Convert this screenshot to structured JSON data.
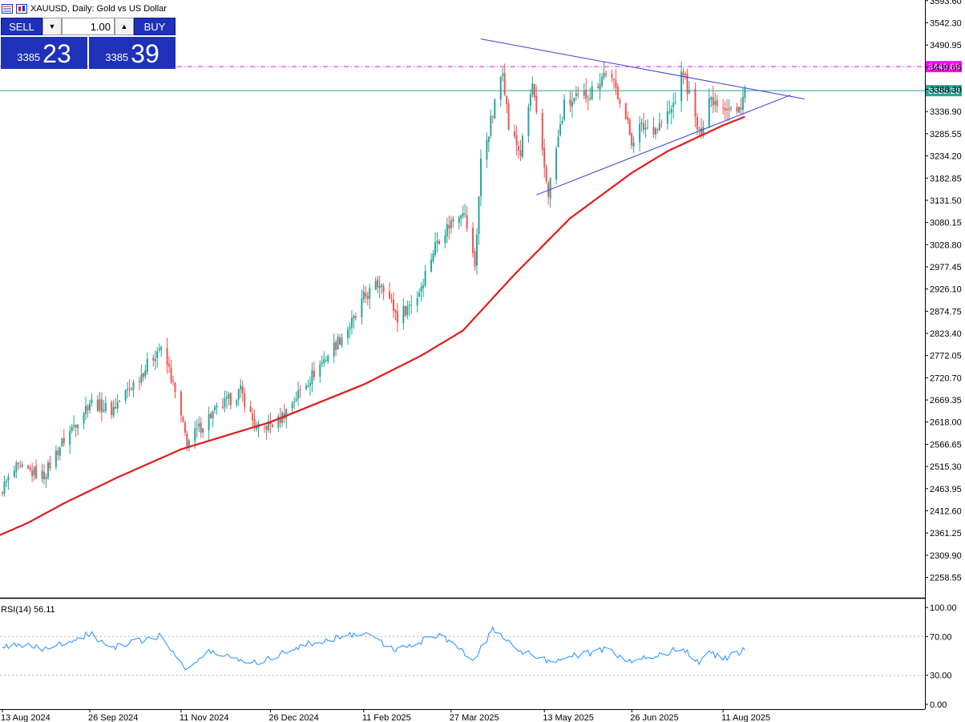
{
  "header": {
    "title": "XAUUSD, Daily:  Gold vs US Dollar"
  },
  "trade_panel": {
    "sell_label": "SELL",
    "buy_label": "BUY",
    "lot_value": "1.00",
    "sell_price_main": "3385",
    "sell_price_big": "23",
    "buy_price_main": "3385",
    "buy_price_big": "39"
  },
  "colors": {
    "bull_candle": "#26a69a",
    "bear_candle": "#ef5350",
    "moving_average": "#e31b1b",
    "trendline": "#3d3ddb",
    "resistance_line": "#ff00ff",
    "bid_line": "#26a69a",
    "rsi_line": "#1e90ff",
    "panel_blue": "#1f31b8"
  },
  "chart_data": [
    {
      "type": "candlestick",
      "symbol": "XAUUSD",
      "timeframe": "Daily",
      "ylim": [
        2207,
        3592
      ],
      "y_ticks": [
        "3593.60",
        "3542.30",
        "3490.95",
        "3439.65",
        "3388.30",
        "3336.90",
        "3285.55",
        "3234.20",
        "3182.85",
        "3131.50",
        "3080.15",
        "3028.80",
        "2977.45",
        "2926.10",
        "2874.75",
        "2823.40",
        "2772.05",
        "2720.70",
        "2669.35",
        "2618.00",
        "2566.65",
        "2515.30",
        "2463.95",
        "2412.60",
        "2361.25",
        "2309.90",
        "2258.55"
      ],
      "x_ticks": [
        "13 Aug 2024",
        "26 Sep 2024",
        "11 Nov 2024",
        "26 Dec 2024",
        "11 Feb 2025",
        "27 Mar 2025",
        "13 May 2025",
        "26 Jun 2025",
        "11 Aug 2025"
      ],
      "price_anchors": [
        [
          "13 Aug 2024",
          2465
        ],
        [
          "20 Aug 2024",
          2510
        ],
        [
          "03 Sep 2024",
          2495
        ],
        [
          "12 Sep 2024",
          2570
        ],
        [
          "20 Sep 2024",
          2625
        ],
        [
          "26 Sep 2024",
          2665
        ],
        [
          "07 Oct 2024",
          2645
        ],
        [
          "22 Oct 2024",
          2730
        ],
        [
          "31 Oct 2024",
          2790
        ],
        [
          "05 Nov 2024",
          2740
        ],
        [
          "14 Nov 2024",
          2570
        ],
        [
          "25 Nov 2024",
          2630
        ],
        [
          "11 Dec 2024",
          2690
        ],
        [
          "19 Dec 2024",
          2600
        ],
        [
          "30 Dec 2024",
          2620
        ],
        [
          "10 Jan 2025",
          2690
        ],
        [
          "24 Jan 2025",
          2775
        ],
        [
          "07 Feb 2025",
          2860
        ],
        [
          "11 Feb 2025",
          2905
        ],
        [
          "20 Feb 2025",
          2945
        ],
        [
          "28 Feb 2025",
          2860
        ],
        [
          "10 Mar 2025",
          2910
        ],
        [
          "20 Mar 2025",
          3040
        ],
        [
          "02 Apr 2025",
          3115
        ],
        [
          "08 Apr 2025",
          2980
        ],
        [
          "11 Apr 2025",
          3220
        ],
        [
          "17 Apr 2025",
          3330
        ],
        [
          "22 Apr 2025",
          3440
        ],
        [
          "25 Apr 2025",
          3300
        ],
        [
          "01 May 2025",
          3240
        ],
        [
          "07 May 2025",
          3400
        ],
        [
          "09 May 2025",
          3320
        ],
        [
          "15 May 2025",
          3150
        ],
        [
          "23 May 2025",
          3350
        ],
        [
          "05 Jun 2025",
          3380
        ],
        [
          "13 Jun 2025",
          3430
        ],
        [
          "20 Jun 2025",
          3370
        ],
        [
          "26 Jun 2025",
          3270
        ],
        [
          "30 Jun 2025",
          3300
        ],
        [
          "09 Jul 2025",
          3300
        ],
        [
          "16 Jul 2025",
          3340
        ],
        [
          "22 Jul 2025",
          3430
        ],
        [
          "30 Jul 2025",
          3280
        ],
        [
          "04 Aug 2025",
          3370
        ],
        [
          "11 Aug 2025",
          3355
        ],
        [
          "18 Aug 2025",
          3330
        ],
        [
          "22 Aug 2025",
          3385
        ]
      ],
      "moving_average_anchors": [
        [
          "06 Aug 2024",
          2345
        ],
        [
          "26 Aug 2024",
          2385
        ],
        [
          "13 Sep 2024",
          2430
        ],
        [
          "10 Oct 2024",
          2490
        ],
        [
          "11 Nov 2024",
          2555
        ],
        [
          "26 Dec 2024",
          2618
        ],
        [
          "11 Feb 2025",
          2705
        ],
        [
          "12 Mar 2025",
          2772
        ],
        [
          "02 Apr 2025",
          2830
        ],
        [
          "28 Apr 2025",
          2960
        ],
        [
          "26 May 2025",
          3090
        ],
        [
          "26 Jun 2025",
          3195
        ],
        [
          "14 Jul 2025",
          3245
        ],
        [
          "28 Jul 2025",
          3275
        ],
        [
          "11 Aug 2025",
          3305
        ],
        [
          "22 Aug 2025",
          3325
        ]
      ],
      "trendlines": [
        {
          "name": "upper",
          "points": [
            [
              "11 Apr 2025",
              3505
            ],
            [
              "21 Sep 2025",
              3366
            ]
          ]
        },
        {
          "name": "lower",
          "points": [
            [
              "09 May 2025",
              3144
            ],
            [
              "14 Sep 2025",
              3375
            ]
          ]
        }
      ],
      "resistance_level": "3440.89",
      "current_price": "3385.26",
      "chart_high": "3500"
    },
    {
      "type": "line",
      "name": "RSI(14) 56.11",
      "ylim": [
        0,
        100
      ],
      "y_ticks": [
        "100.00",
        "70.00",
        "30.00",
        "0.00"
      ],
      "levels": [
        30,
        70
      ],
      "anchors": [
        [
          "13 Aug 2024",
          57
        ],
        [
          "20 Aug 2024",
          63
        ],
        [
          "03 Sep 2024",
          56
        ],
        [
          "26 Sep 2024",
          73
        ],
        [
          "07 Oct 2024",
          58
        ],
        [
          "31 Oct 2024",
          71
        ],
        [
          "14 Nov 2024",
          36
        ],
        [
          "25 Nov 2024",
          54
        ],
        [
          "19 Dec 2024",
          43
        ],
        [
          "10 Jan 2025",
          60
        ],
        [
          "11 Feb 2025",
          75
        ],
        [
          "28 Feb 2025",
          55
        ],
        [
          "20 Mar 2025",
          72
        ],
        [
          "08 Apr 2025",
          47
        ],
        [
          "17 Apr 2025",
          77
        ],
        [
          "01 May 2025",
          56
        ],
        [
          "15 May 2025",
          45
        ],
        [
          "13 Jun 2025",
          56
        ],
        [
          "26 Jun 2025",
          44
        ],
        [
          "22 Jul 2025",
          58
        ],
        [
          "30 Jul 2025",
          43
        ],
        [
          "04 Aug 2025",
          54
        ],
        [
          "11 Aug 2025",
          47
        ],
        [
          "22 Aug 2025",
          56.11
        ]
      ]
    }
  ]
}
